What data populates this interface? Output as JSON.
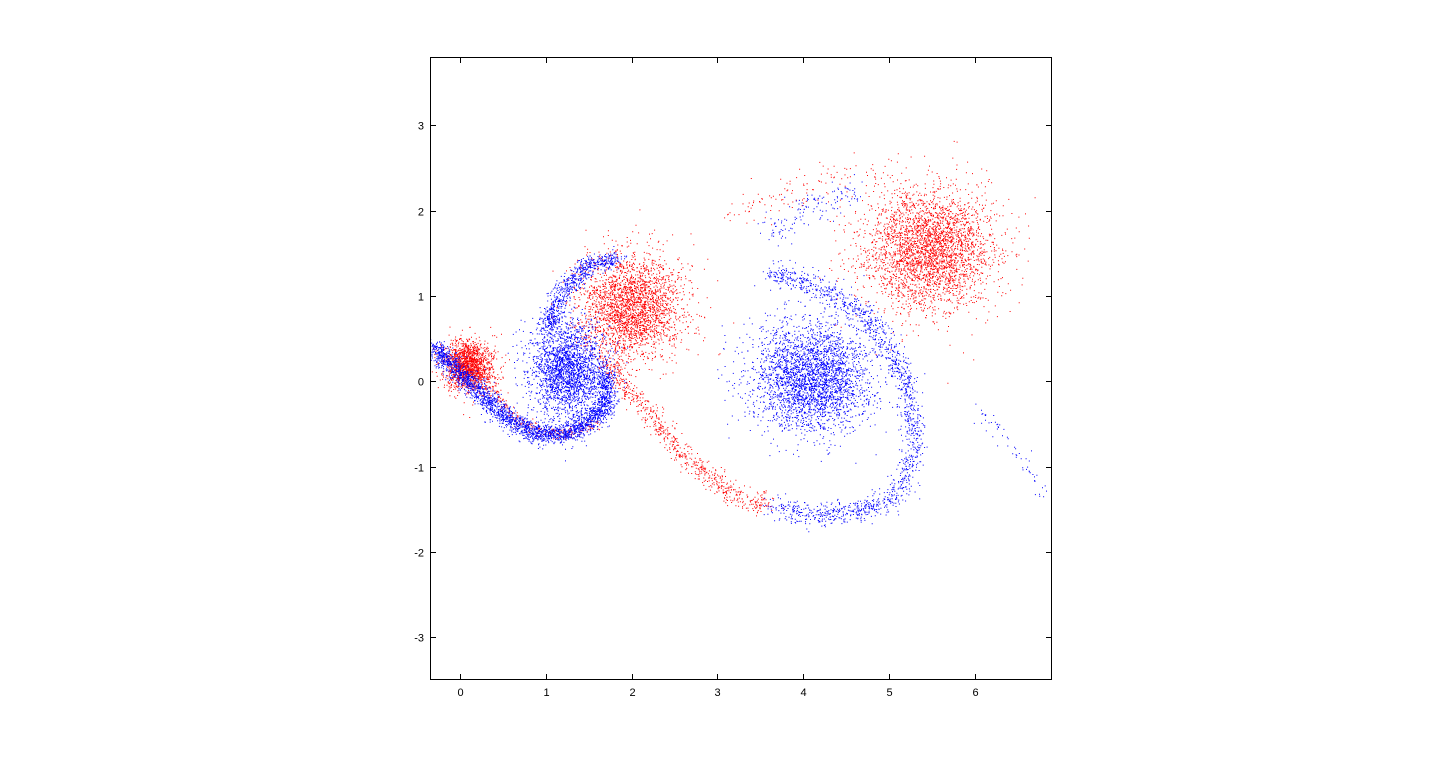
{
  "chart_data": {
    "type": "scatter",
    "title": "",
    "xlabel": "",
    "ylabel": "",
    "xlim": [
      -0.35,
      6.9
    ],
    "ylim": [
      -3.5,
      3.8
    ],
    "xticks": [
      0,
      1,
      2,
      3,
      4,
      5,
      6
    ],
    "yticks": [
      -3,
      -2,
      -1,
      0,
      1,
      2,
      3
    ],
    "xtick_labels": [
      "0",
      "1",
      "2",
      "3",
      "4",
      "5",
      "6"
    ],
    "ytick_labels": [
      "-3",
      "-2",
      "-1",
      "0",
      "1",
      "2",
      "3"
    ],
    "grid": false,
    "legend": "none",
    "colors": {
      "red_series": "#ff0000",
      "blue_series": "#0000ff"
    },
    "series": [
      {
        "color": "#ff0000",
        "clusters": [
          {
            "center": [
              0.15,
              0.15
            ],
            "spread": [
              0.15,
              0.16
            ],
            "count": 1500,
            "shape": "lobe"
          },
          {
            "center": [
              2.0,
              0.88
            ],
            "spread": [
              0.3,
              0.3
            ],
            "count": 2600,
            "shape": "gaussian"
          },
          {
            "center": [
              5.45,
              1.55
            ],
            "spread": [
              0.38,
              0.35
            ],
            "count": 3200,
            "shape": "gaussian"
          }
        ],
        "filaments": [
          {
            "points": [
              [
                0.05,
                0.45
              ],
              [
                0.3,
                0.0
              ],
              [
                0.7,
                -0.5
              ],
              [
                1.2,
                -0.62
              ],
              [
                1.6,
                -0.5
              ]
            ],
            "width": 0.035,
            "count": 300
          },
          {
            "points": [
              [
                1.65,
                0.3
              ],
              [
                1.95,
                -0.1
              ],
              [
                2.3,
                -0.5
              ],
              [
                2.7,
                -0.95
              ],
              [
                3.2,
                -1.35
              ],
              [
                3.6,
                -1.45
              ]
            ],
            "width": 0.06,
            "count": 700
          },
          {
            "points": [
              [
                3.2,
                2.0
              ],
              [
                3.9,
                2.2
              ],
              [
                4.4,
                2.45
              ],
              [
                5.0,
                2.4
              ]
            ],
            "width": 0.12,
            "count": 120
          }
        ]
      },
      {
        "color": "#0000ff",
        "clusters": [
          {
            "center": [
              1.25,
              0.15
            ],
            "spread": [
              0.22,
              0.28
            ],
            "count": 2300,
            "shape": "gaussian"
          },
          {
            "center": [
              4.1,
              0.05
            ],
            "spread": [
              0.35,
              0.32
            ],
            "count": 3000,
            "shape": "gaussian"
          }
        ],
        "filaments": [
          {
            "points": [
              [
                -0.3,
                0.4
              ],
              [
                0.1,
                0.0
              ],
              [
                0.5,
                -0.4
              ],
              [
                0.9,
                -0.62
              ],
              [
                1.3,
                -0.6
              ],
              [
                1.7,
                -0.3
              ],
              [
                1.7,
                0.1
              ]
            ],
            "width": 0.06,
            "count": 2600
          },
          {
            "points": [
              [
                1.0,
                0.6
              ],
              [
                1.2,
                1.05
              ],
              [
                1.5,
                1.38
              ],
              [
                1.85,
                1.45
              ]
            ],
            "width": 0.06,
            "count": 700
          },
          {
            "points": [
              [
                3.6,
                1.3
              ],
              [
                4.3,
                1.05
              ],
              [
                4.8,
                0.7
              ],
              [
                5.2,
                0.0
              ],
              [
                5.3,
                -0.8
              ],
              [
                5.1,
                -1.35
              ],
              [
                4.6,
                -1.52
              ],
              [
                4.1,
                -1.56
              ],
              [
                3.6,
                -1.45
              ]
            ],
            "width": 0.07,
            "count": 1500
          },
          {
            "points": [
              [
                3.6,
                1.75
              ],
              [
                4.1,
                2.05
              ],
              [
                4.6,
                2.25
              ]
            ],
            "width": 0.1,
            "count": 140
          },
          {
            "points": [
              [
                6.0,
                -0.3
              ],
              [
                6.3,
                -0.6
              ],
              [
                6.6,
                -1.0
              ],
              [
                6.85,
                -1.35
              ]
            ],
            "width": 0.05,
            "count": 60
          }
        ]
      }
    ]
  }
}
